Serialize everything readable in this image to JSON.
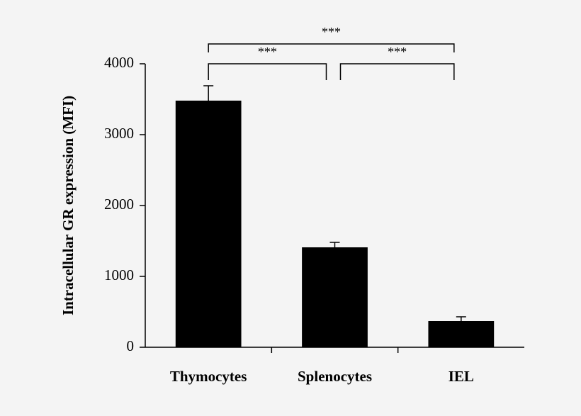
{
  "chart_data": {
    "type": "bar",
    "ylabel": "Intracellular GR expression (MFI)",
    "categories": [
      "Thymocytes",
      "Splenocytes",
      "IEL"
    ],
    "values": [
      3480,
      1410,
      370
    ],
    "errors": [
      210,
      70,
      60
    ],
    "color": "#000000",
    "ylim": [
      0,
      4000
    ],
    "yticks": [
      0,
      1000,
      2000,
      3000,
      4000
    ],
    "annotations": [
      "***",
      "***",
      "***"
    ]
  }
}
